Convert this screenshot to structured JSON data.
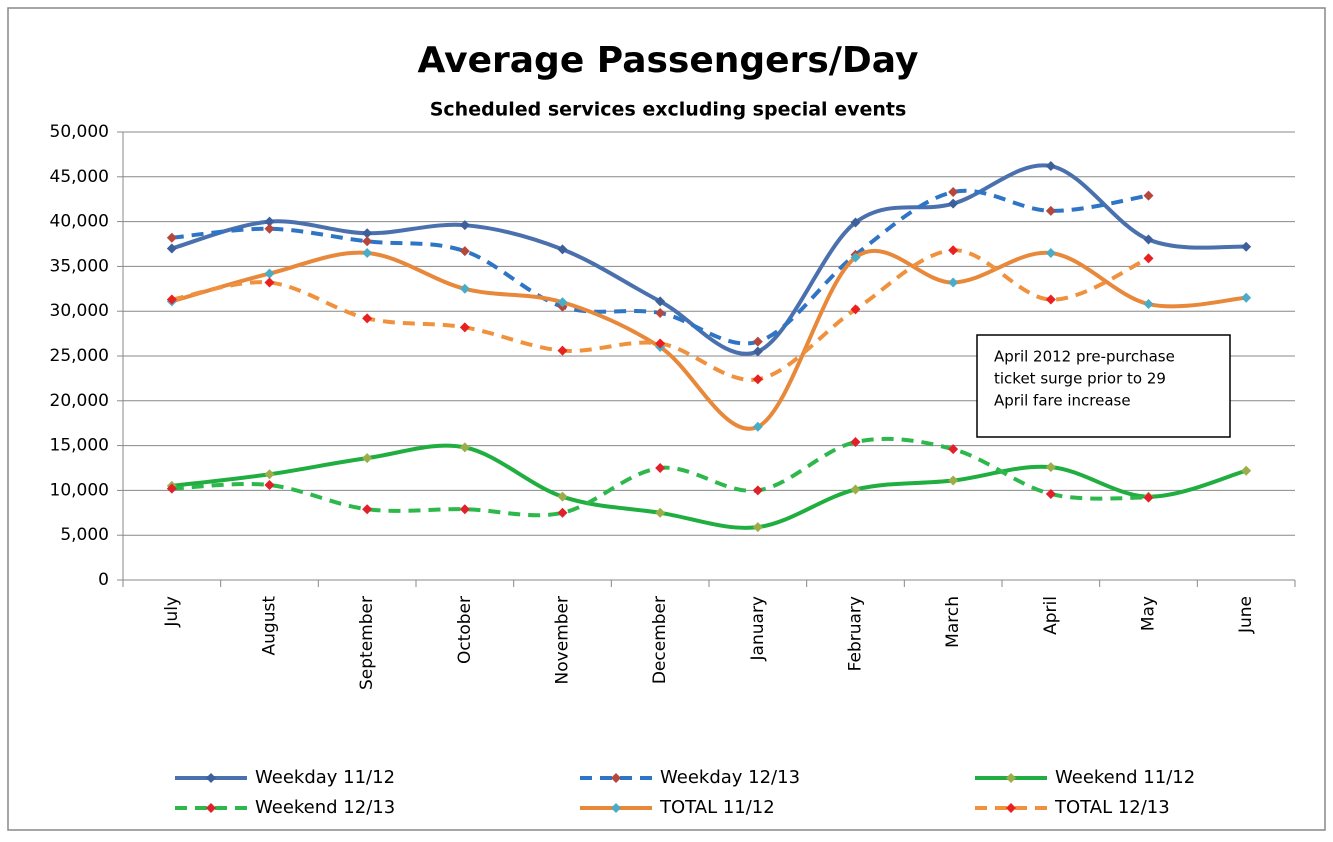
{
  "chart_data": {
    "type": "line",
    "title": "Average Passengers/Day",
    "subtitle": "Scheduled services excluding special events",
    "annotation": [
      "April 2012 pre-purchase",
      "ticket surge prior to 29",
      "April fare increase"
    ],
    "categories": [
      "July",
      "August",
      "September",
      "October",
      "November",
      "December",
      "January",
      "February",
      "March",
      "April",
      "May",
      "June"
    ],
    "ylim": [
      0,
      50000
    ],
    "yticks": [
      0,
      {
        "value": 5000,
        "label": "5,000"
      },
      {
        "value": 10000,
        "label": "10,000"
      },
      {
        "value": 15000,
        "label": "15,000"
      },
      {
        "value": 20000,
        "label": "20,000"
      },
      {
        "value": 25000,
        "label": "25,000"
      },
      {
        "value": 30000,
        "label": "30,000"
      },
      {
        "value": 35000,
        "label": "35,000"
      },
      {
        "value": 40000,
        "label": "40,000"
      },
      {
        "value": 45000,
        "label": "45,000"
      },
      {
        "value": 50000,
        "label": "50,000"
      }
    ],
    "grid": true,
    "smooth": true,
    "legend": "bottom",
    "series": [
      {
        "name": "Weekday 11/12",
        "color": "#4a70ad",
        "marker_color": "#3d5f9a",
        "dashed": false,
        "values": [
          37000,
          40000,
          38700,
          39600,
          36900,
          31100,
          25500,
          39900,
          42000,
          46200,
          38000,
          37200
        ]
      },
      {
        "name": "Weekday 12/13",
        "color": "#2e75c6",
        "marker_color": "#b5483e",
        "dashed": true,
        "values": [
          38200,
          39200,
          37800,
          36700,
          30500,
          29800,
          26600,
          36300,
          43300,
          41200,
          42900,
          null
        ]
      },
      {
        "name": "Weekend 11/12",
        "color": "#1fae3f",
        "marker_color": "#9bae4a",
        "dashed": false,
        "values": [
          10500,
          11800,
          13600,
          14800,
          9300,
          7500,
          5900,
          10100,
          11100,
          12600,
          9300,
          12200
        ]
      },
      {
        "name": "Weekend 12/13",
        "color": "#2eb84b",
        "marker_color": "#e0202a",
        "dashed": true,
        "values": [
          10200,
          10600,
          7900,
          7900,
          7500,
          12500,
          10000,
          15400,
          14600,
          9600,
          9200,
          null
        ]
      },
      {
        "name": "TOTAL 11/12",
        "color": "#e8883a",
        "marker_color": "#4bacc6",
        "dashed": false,
        "values": [
          31100,
          34200,
          36500,
          32500,
          31000,
          26000,
          17100,
          36000,
          33200,
          36500,
          30800,
          31500
        ]
      },
      {
        "name": "TOTAL 12/13",
        "color": "#f0913d",
        "marker_color": "#e82020",
        "dashed": true,
        "values": [
          31300,
          33200,
          29200,
          28200,
          25600,
          26400,
          22400,
          30200,
          36800,
          31300,
          35900,
          null
        ]
      }
    ]
  }
}
